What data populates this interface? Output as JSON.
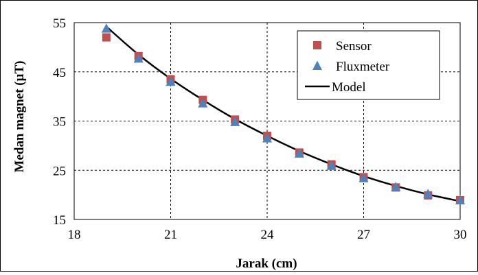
{
  "chart_data": {
    "type": "scatter",
    "title": "",
    "xlabel": "Jarak  (cm)",
    "ylabel": "Medan magnet  (µT)",
    "xlim": [
      18,
      30
    ],
    "ylim": [
      15,
      55
    ],
    "xticks": [
      18,
      21,
      24,
      27,
      30
    ],
    "yticks": [
      15,
      25,
      35,
      45,
      55
    ],
    "grid": true,
    "legend_position": "top-right",
    "series": [
      {
        "name": "Sensor",
        "kind": "marker",
        "marker": "square",
        "color": "#c0504d",
        "x": [
          19,
          20,
          21,
          22,
          23,
          24,
          25,
          26,
          27,
          28,
          29,
          30
        ],
        "y": [
          52.0,
          48.2,
          43.5,
          39.3,
          35.3,
          32.0,
          28.6,
          26.2,
          23.6,
          21.5,
          19.9,
          18.9
        ]
      },
      {
        "name": "Fluxmeter",
        "kind": "marker",
        "marker": "triangle",
        "color": "#4f81bd",
        "x": [
          19,
          20,
          21,
          22,
          23,
          24,
          25,
          26,
          27,
          28,
          29,
          30
        ],
        "y": [
          53.8,
          47.7,
          43.0,
          38.6,
          34.8,
          31.5,
          28.4,
          25.9,
          23.4,
          21.6,
          20.2,
          18.9
        ]
      },
      {
        "name": "Model",
        "kind": "line",
        "color": "#000000",
        "x": [
          19,
          20,
          21,
          22,
          23,
          24,
          25,
          26,
          27,
          28,
          29,
          30
        ],
        "y": [
          54.2,
          48.5,
          43.6,
          39.3,
          35.4,
          32.0,
          28.9,
          26.2,
          23.8,
          21.8,
          20.1,
          18.7
        ]
      }
    ]
  }
}
